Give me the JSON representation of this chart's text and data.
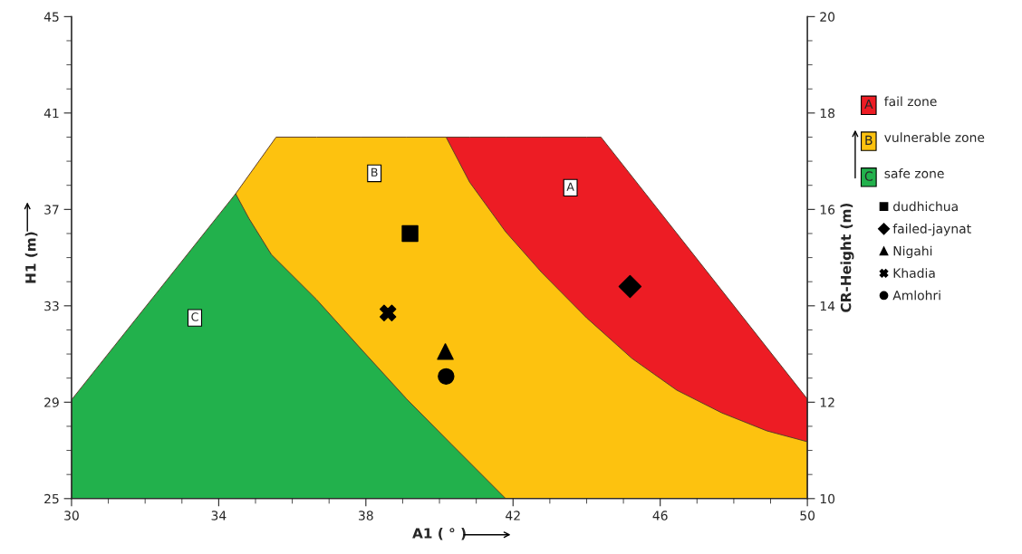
{
  "chart_data": {
    "type": "scatter",
    "xlabel": "A1 ( ° )",
    "ylabel": "H1 (m)",
    "y2label": "CR-Height (m)",
    "xlim": [
      30,
      50
    ],
    "xticks": [
      30,
      34,
      38,
      42,
      46,
      50
    ],
    "ylim": [
      25,
      45
    ],
    "yticks": [
      25,
      29,
      33,
      37,
      41,
      45
    ],
    "y2lim": [
      10,
      20
    ],
    "y2ticks": [
      10,
      12,
      14,
      16,
      18,
      20
    ],
    "grid": false,
    "legend": "right",
    "annotations": [
      {
        "text": "A",
        "x": 43.56,
        "y": 37.9
      },
      {
        "text": "B",
        "x": 38.23,
        "y": 38.5
      },
      {
        "text": "C",
        "x": 33.35,
        "y": 32.5
      }
    ],
    "series": [
      {
        "type": "area",
        "name": "fail zone",
        "color": "#ed1c24",
        "x": [
          40.18,
          40.82,
          41.8,
          42.78,
          44.0,
          44.39,
          50
        ],
        "values": [
          40,
          40,
          40,
          40,
          40,
          40,
          29.13
        ]
      },
      {
        "type": "area",
        "name": "vulnerable zone",
        "color": "#fdc20f",
        "x": [
          34.46,
          35.56,
          36.66,
          37.88,
          39.11,
          40.18,
          40.82,
          41.8,
          42.78,
          44.0,
          45.23,
          46.45,
          47.67,
          48.9,
          50
        ],
        "values": [
          37.65,
          40,
          40,
          40,
          40,
          40,
          38.13,
          36.07,
          34.38,
          32.5,
          30.82,
          29.5,
          28.56,
          27.81,
          27.36
        ]
      },
      {
        "type": "area",
        "name": "safe zone",
        "color": "#22b14c",
        "x": [
          30,
          34.46,
          34.82,
          35.43,
          36.66,
          37.88,
          39.11,
          40.33,
          41.8
        ],
        "values": [
          29.1,
          37.65,
          36.63,
          35.13,
          33.26,
          31.19,
          29.13,
          27.25,
          25
        ]
      },
      {
        "name": "dudhichua",
        "color": "#000000",
        "marker": "square",
        "x": [
          39.2
        ],
        "values": [
          36.0
        ]
      },
      {
        "name": "failed-jaynat",
        "color": "#000000",
        "marker": "diamond",
        "x": [
          45.18
        ],
        "values": [
          33.8
        ]
      },
      {
        "name": "Nigahi",
        "color": "#000000",
        "marker": "triangle",
        "x": [
          40.16
        ],
        "values": [
          31.1
        ]
      },
      {
        "name": "Khadia",
        "color": "#000000",
        "marker": "cross",
        "x": [
          38.6
        ],
        "values": [
          32.7
        ]
      },
      {
        "name": "Amlohri",
        "color": "#000000",
        "marker": "circle",
        "x": [
          40.18
        ],
        "values": [
          30.07
        ]
      }
    ]
  }
}
